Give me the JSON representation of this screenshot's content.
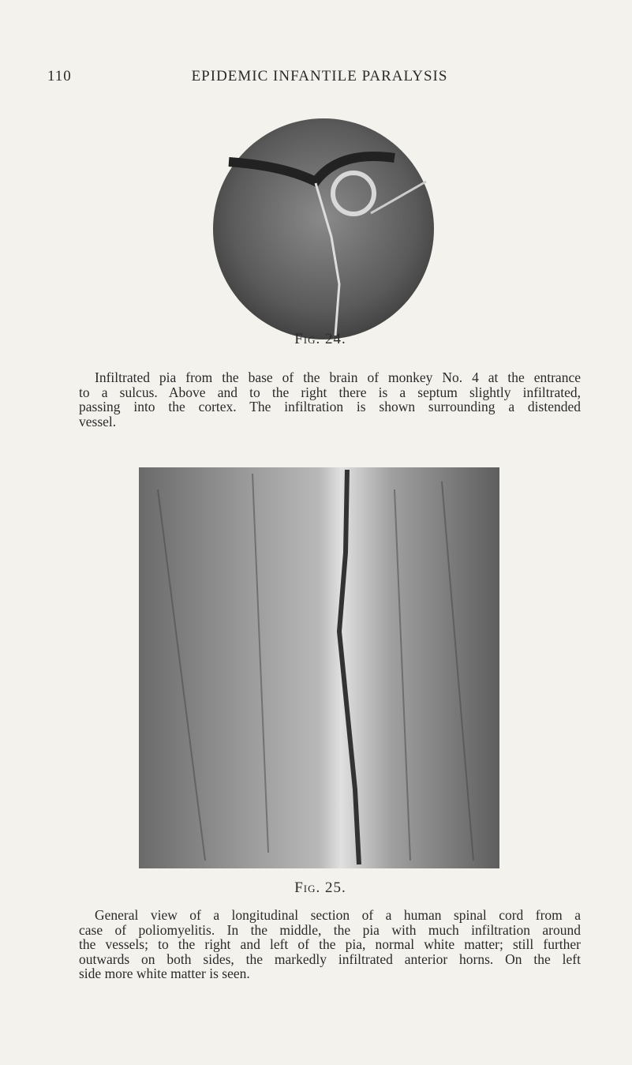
{
  "header": {
    "page_number": "110",
    "title": "EPIDEMIC INFANTILE PARALYSIS"
  },
  "figures": [
    {
      "label": "Fig. 24.",
      "caption_lines": [
        "Infiltrated pia from the base of the brain of monkey No. 4 at the entrance",
        "to a sulcus. Above and to the right there is a septum slightly infiltrated,",
        "passing into the cortex. The infiltration is shown surrounding a distended",
        "vessel."
      ]
    },
    {
      "label": "Fig. 25.",
      "caption_lines": [
        "General view of a longitudinal section of a human spinal cord from a",
        "case of poliomyelitis. In the middle, the pia with much infiltration around",
        "the vessels; to the right and left of the pia, normal white matter; still further",
        "outwards on both sides, the markedly infiltrated anterior horns. On the left",
        "side more white matter is seen."
      ]
    }
  ]
}
